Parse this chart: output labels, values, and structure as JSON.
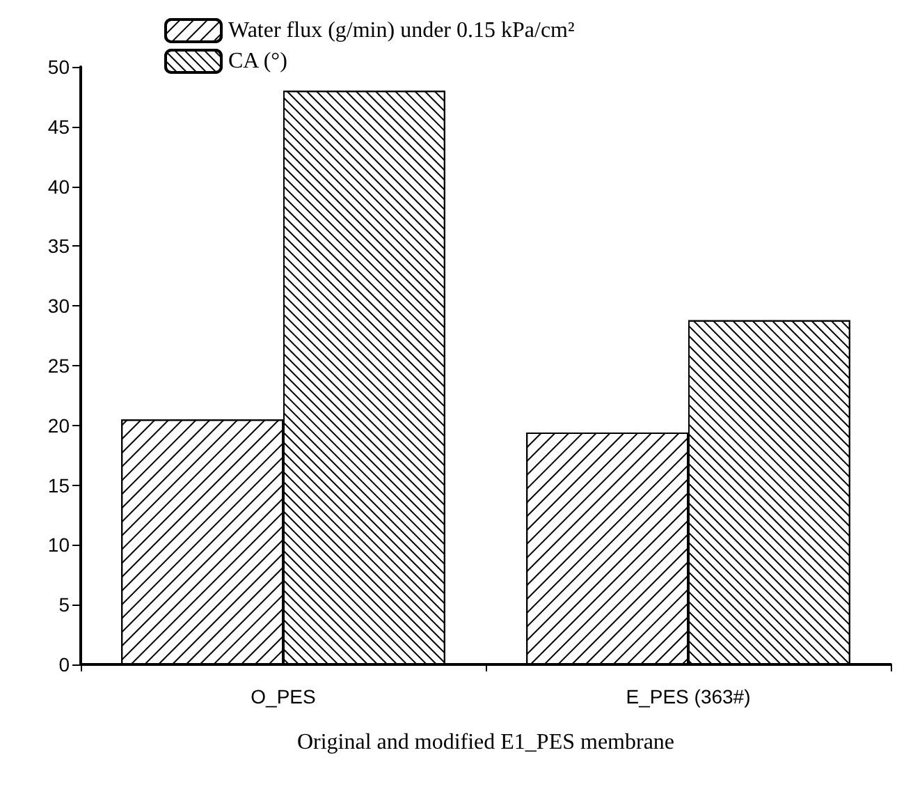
{
  "chart_data": {
    "type": "bar",
    "xlabel": "Original and modified E1_PES membrane",
    "categories": [
      "O_PES",
      "E_PES (363#)"
    ],
    "series": [
      {
        "name": "Water flux (g/min) under 0.15 kPa/cm²",
        "color": "#000000",
        "values": [
          20.5,
          19.4
        ]
      },
      {
        "name": "CA (°)",
        "color": "#000000",
        "values": [
          48,
          28.8
        ]
      }
    ],
    "ylim": [
      0,
      50
    ],
    "yticks": [
      0,
      5,
      10,
      15,
      20,
      25,
      30,
      35,
      40,
      45,
      50
    ],
    "grid": false,
    "legend": "top left"
  }
}
